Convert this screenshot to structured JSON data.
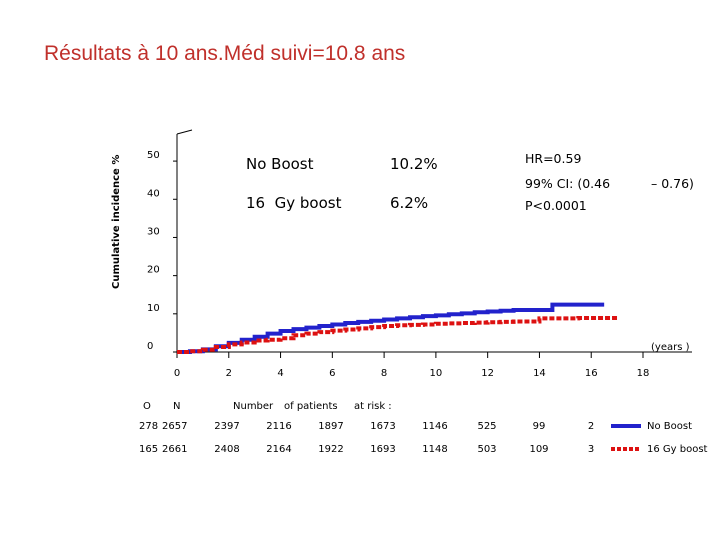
{
  "title": "Résultats à 10 ans.Méd suivi=10.8 ans",
  "colors": {
    "title": "#c0302b",
    "no_boost": "#2222cc",
    "boost": "#dd1111"
  },
  "chart_data": {
    "type": "line",
    "ylabel": "Cumulative incidence %",
    "xlabel": "(years )",
    "x_ticks": [
      "0",
      "2",
      "4",
      "6",
      "8",
      "10",
      "12",
      "14",
      "16",
      "18"
    ],
    "y_ticks": [
      "0",
      "10",
      "20",
      "30",
      "40",
      "50"
    ],
    "xlim": [
      0,
      18
    ],
    "ylim": [
      0,
      55
    ],
    "series": [
      {
        "key": "no_boost",
        "name": "No Boost",
        "line": "solid",
        "x": [
          0,
          0.5,
          1,
          1.5,
          2,
          2.5,
          3,
          3.5,
          4,
          4.5,
          5,
          5.5,
          6,
          6.5,
          7,
          7.5,
          8,
          8.5,
          9,
          9.5,
          10,
          10.5,
          11,
          11.5,
          12,
          12.5,
          13,
          13.5,
          14,
          14.5,
          15,
          15.5,
          16,
          16.5
        ],
        "y": [
          0,
          0.2,
          0.7,
          1.5,
          2.4,
          3.2,
          4.0,
          4.8,
          5.5,
          6.0,
          6.4,
          6.8,
          7.2,
          7.6,
          7.9,
          8.2,
          8.5,
          8.8,
          9.1,
          9.4,
          9.6,
          9.9,
          10.1,
          10.4,
          10.6,
          10.8,
          11.0,
          11.0,
          11.0,
          12.4,
          12.4,
          12.4,
          12.4,
          12.4
        ]
      },
      {
        "key": "boost",
        "name": "16 Gy boost",
        "line": "dashed",
        "x": [
          0,
          0.5,
          1,
          1.5,
          2,
          2.5,
          3,
          3.5,
          4,
          4.5,
          5,
          5.5,
          6,
          6.5,
          7,
          7.5,
          8,
          8.5,
          9,
          9.5,
          10,
          10.5,
          11,
          11.5,
          12,
          12.5,
          13,
          13.5,
          14,
          14.5,
          15,
          15.5,
          16,
          16.5,
          17
        ],
        "y": [
          0,
          0.2,
          0.6,
          1.3,
          2.0,
          2.5,
          3.0,
          3.2,
          3.6,
          4.4,
          4.8,
          5.2,
          5.6,
          5.9,
          6.2,
          6.5,
          6.8,
          7.0,
          7.1,
          7.2,
          7.4,
          7.5,
          7.6,
          7.7,
          7.8,
          7.9,
          8.0,
          8.0,
          8.8,
          8.8,
          8.8,
          8.9,
          8.9,
          8.9,
          8.9
        ]
      }
    ],
    "legend": [
      {
        "label": "No Boost",
        "value": "10.2%"
      },
      {
        "label": "16  Gy boost",
        "value": "6.2%"
      }
    ],
    "annotations": [
      "HR=0.59",
      "99% CI: (0.46",
      "– 0.76)",
      "P<0.0001"
    ]
  },
  "risk_table": {
    "header": {
      "o": "O",
      "n": "N",
      "number": "Number",
      "of_patients": "of patients",
      "at_risk": "at risk :"
    },
    "rows": [
      {
        "o": "278",
        "n": "2657",
        "values": [
          "2397",
          "2116",
          "1897",
          "1673",
          "1146",
          "525",
          "99",
          "2"
        ],
        "label": "No Boost",
        "series": "no_boost"
      },
      {
        "o": "165",
        "n": "2661",
        "values": [
          "2408",
          "2164",
          "1922",
          "1693",
          "1148",
          "503",
          "109",
          "3"
        ],
        "label": "16 Gy boost",
        "series": "boost"
      }
    ]
  }
}
